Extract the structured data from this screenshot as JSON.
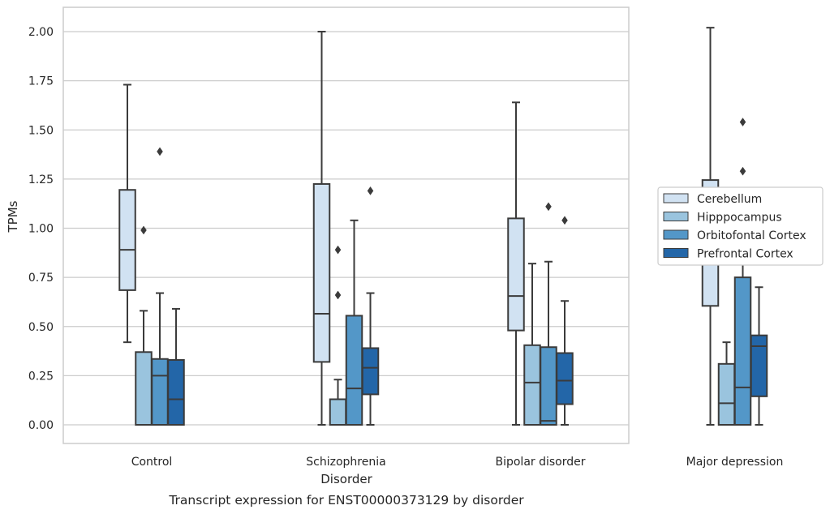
{
  "chart_data": {
    "type": "box",
    "xlabel": "Disorder",
    "ylabel": "TPMs",
    "caption": "Transcript expression for ENST00000373129 by disorder",
    "ylim": [
      -0.1,
      2.12
    ],
    "yticks": [
      "0.00",
      "0.25",
      "0.50",
      "0.75",
      "1.00",
      "1.25",
      "1.50",
      "1.75",
      "2.00"
    ],
    "ytick_values": [
      0,
      0.25,
      0.5,
      0.75,
      1.0,
      1.25,
      1.5,
      1.75,
      2.0
    ],
    "grid": true,
    "legend_position": "right",
    "categories": [
      "Control",
      "Schizophrenia",
      "Bipolar disorder",
      "Major depression"
    ],
    "series": [
      {
        "name": "Cerebellum",
        "color": "#d1e2f2",
        "boxes": [
          {
            "whislo": 0.42,
            "q1": 0.685,
            "med": 0.89,
            "q3": 1.195,
            "whishi": 1.73,
            "fliers": []
          },
          {
            "whislo": 0.0,
            "q1": 0.32,
            "med": 0.565,
            "q3": 1.225,
            "whishi": 2.0,
            "fliers": []
          },
          {
            "whislo": 0.0,
            "q1": 0.48,
            "med": 0.655,
            "q3": 1.05,
            "whishi": 1.64,
            "fliers": []
          },
          {
            "whislo": 0.0,
            "q1": 0.605,
            "med": 0.93,
            "q3": 1.245,
            "whishi": 2.02,
            "fliers": []
          }
        ]
      },
      {
        "name": "Hipppocampus",
        "color": "#9ac4de",
        "boxes": [
          {
            "whislo": 0.0,
            "q1": 0.0,
            "med": 0.0,
            "q3": 0.37,
            "whishi": 0.58,
            "fliers": [
              0.99
            ]
          },
          {
            "whislo": 0.0,
            "q1": 0.0,
            "med": 0.0,
            "q3": 0.13,
            "whishi": 0.23,
            "fliers": [
              0.66,
              0.89
            ]
          },
          {
            "whislo": 0.0,
            "q1": 0.0,
            "med": 0.215,
            "q3": 0.405,
            "whishi": 0.82,
            "fliers": []
          },
          {
            "whislo": 0.0,
            "q1": 0.0,
            "med": 0.11,
            "q3": 0.31,
            "whishi": 0.42,
            "fliers": []
          }
        ]
      },
      {
        "name": "Orbitofontal Cortex",
        "color": "#5397c8",
        "boxes": [
          {
            "whislo": 0.0,
            "q1": 0.0,
            "med": 0.25,
            "q3": 0.335,
            "whishi": 0.67,
            "fliers": [
              1.39
            ]
          },
          {
            "whislo": 0.0,
            "q1": 0.0,
            "med": 0.185,
            "q3": 0.555,
            "whishi": 1.04,
            "fliers": []
          },
          {
            "whislo": 0.0,
            "q1": 0.0,
            "med": 0.02,
            "q3": 0.395,
            "whishi": 0.83,
            "fliers": [
              1.11
            ]
          },
          {
            "whislo": 0.0,
            "q1": 0.0,
            "med": 0.19,
            "q3": 0.75,
            "whishi": 0.96,
            "fliers": [
              1.29,
              1.54
            ]
          }
        ]
      },
      {
        "name": "Prefrontal Cortex",
        "color": "#2366a8",
        "boxes": [
          {
            "whislo": 0.0,
            "q1": 0.0,
            "med": 0.13,
            "q3": 0.33,
            "whishi": 0.59,
            "fliers": []
          },
          {
            "whislo": 0.0,
            "q1": 0.155,
            "med": 0.29,
            "q3": 0.39,
            "whishi": 0.67,
            "fliers": [
              1.19
            ]
          },
          {
            "whislo": 0.0,
            "q1": 0.105,
            "med": 0.225,
            "q3": 0.365,
            "whishi": 0.63,
            "fliers": [
              1.04
            ]
          },
          {
            "whislo": 0.0,
            "q1": 0.145,
            "med": 0.4,
            "q3": 0.455,
            "whishi": 0.7,
            "fliers": []
          }
        ]
      }
    ]
  }
}
